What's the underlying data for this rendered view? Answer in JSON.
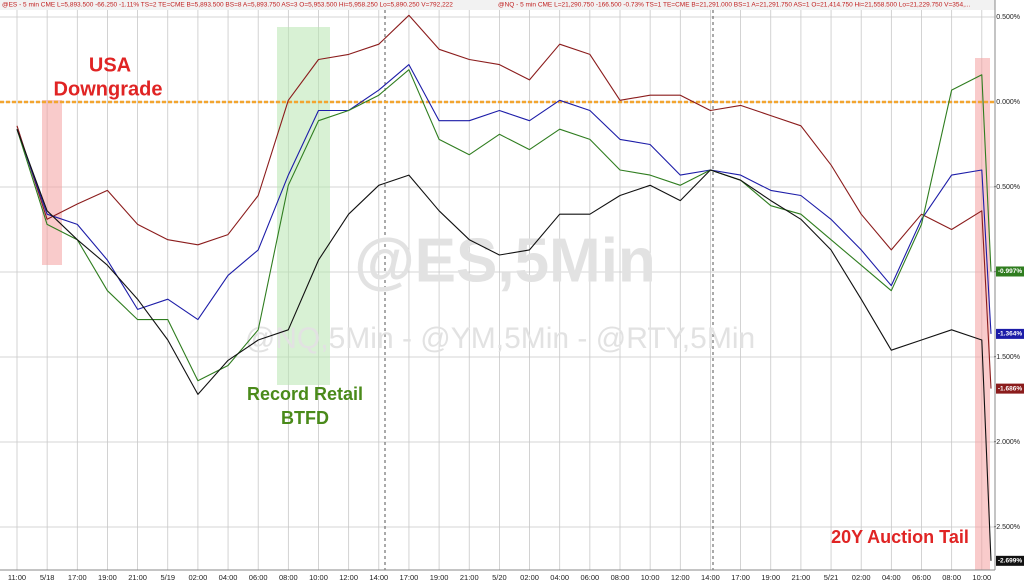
{
  "chart_data": {
    "type": "line",
    "header": [
      "@ES - 5 min CME  L=5,893.500 -66.250 -1.11% TS=2 TE=CME B=5,893.500 BS=8 A=5,893.750 AS=3 O=5,953.500 Hi=5,958.250 Lo=5,890.250 V=792,222",
      "@NQ - 5 min CME  L=21,290.750 -166.500 -0.73% TS=1 TE=CME B=21,291.000 BS=1 A=21,291.750 AS=1 O=21,414.750 Hi=21,558.500 Lo=21,229.750 V=354,..."
    ],
    "watermark": "@ES,5Min",
    "subwatermark": "@NQ,5Min - @YM,5Min - @RTY,5Min",
    "annotations": [
      [
        "USA",
        "Downgrade"
      ],
      [
        "Record Retail",
        "BTFD"
      ],
      [
        "20Y Auction Tail"
      ]
    ],
    "categories": [
      "11:00",
      "5/18",
      "17:00",
      "19:00",
      "21:00",
      "5/19",
      "02:00",
      "04:00",
      "06:00",
      "08:00",
      "10:00",
      "12:00",
      "14:00",
      "17:00",
      "19:00",
      "21:00",
      "5/20",
      "02:00",
      "04:00",
      "06:00",
      "08:00",
      "10:00",
      "12:00",
      "14:00",
      "17:00",
      "19:00",
      "21:00",
      "5/21",
      "02:00",
      "04:00",
      "06:00",
      "08:00",
      "10:00",
      null
    ],
    "series": [
      {
        "color": "#8b1c1c",
        "values": [
          -0.14,
          -0.69,
          -0.6,
          -0.52,
          -0.72,
          -0.81,
          -0.84,
          -0.78,
          -0.55,
          0.01,
          0.25,
          0.28,
          0.34,
          0.51,
          0.31,
          0.25,
          0.22,
          0.13,
          0.34,
          0.28,
          0.01,
          0.04,
          0.04,
          -0.05,
          -0.02,
          -0.08,
          -0.14,
          -0.37,
          -0.66,
          -0.87,
          -0.66,
          -0.75,
          -0.64,
          -1.686
        ],
        "value_labels": [
          null,
          null,
          null,
          null,
          null,
          null,
          null,
          null,
          null,
          null,
          null,
          null,
          null,
          null,
          null,
          null,
          null,
          null,
          null,
          null,
          null,
          null,
          null,
          null,
          null,
          null,
          null,
          null,
          null,
          null,
          null,
          null,
          null,
          "-1.686%"
        ]
      },
      {
        "color": "#1c1ca8",
        "values": [
          -0.16,
          -0.66,
          -0.72,
          -0.93,
          -1.22,
          -1.16,
          -1.28,
          -1.02,
          -0.87,
          -0.43,
          -0.05,
          -0.05,
          0.07,
          0.22,
          -0.11,
          -0.11,
          -0.05,
          -0.11,
          0.01,
          -0.05,
          -0.22,
          -0.25,
          -0.43,
          -0.4,
          -0.43,
          -0.52,
          -0.55,
          -0.69,
          -0.87,
          -1.08,
          -0.69,
          -0.43,
          -0.4,
          -1.364
        ],
        "value_labels": [
          null,
          null,
          null,
          null,
          null,
          null,
          null,
          null,
          null,
          null,
          null,
          null,
          null,
          null,
          null,
          null,
          null,
          null,
          null,
          null,
          null,
          null,
          null,
          null,
          null,
          null,
          null,
          null,
          null,
          null,
          null,
          null,
          null,
          "-1.364%"
        ]
      },
      {
        "color": "#2f7d1f",
        "values": [
          -0.16,
          -0.72,
          -0.81,
          -1.11,
          -1.28,
          -1.28,
          -1.64,
          -1.55,
          -1.34,
          -0.49,
          -0.11,
          -0.05,
          0.04,
          0.19,
          -0.22,
          -0.31,
          -0.19,
          -0.28,
          -0.16,
          -0.22,
          -0.4,
          -0.43,
          -0.49,
          -0.4,
          -0.46,
          -0.61,
          -0.66,
          -0.81,
          -0.96,
          -1.11,
          -0.72,
          0.07,
          0.16,
          -0.997
        ],
        "value_labels": [
          null,
          null,
          null,
          null,
          null,
          null,
          null,
          null,
          null,
          null,
          null,
          null,
          null,
          null,
          null,
          null,
          null,
          null,
          null,
          null,
          null,
          null,
          null,
          null,
          null,
          null,
          null,
          null,
          null,
          null,
          null,
          null,
          null,
          "-0.997%"
        ]
      },
      {
        "color": "#111111",
        "values": [
          -0.16,
          -0.64,
          -0.81,
          -0.96,
          -1.16,
          -1.4,
          -1.72,
          -1.52,
          -1.4,
          -1.34,
          -0.93,
          -0.66,
          -0.49,
          -0.43,
          -0.64,
          -0.81,
          -0.9,
          -0.87,
          -0.66,
          -0.66,
          -0.55,
          -0.49,
          -0.58,
          -0.4,
          -0.46,
          -0.58,
          -0.69,
          -0.87,
          -1.16,
          -1.46,
          -1.4,
          -1.34,
          -1.4,
          -2.699
        ],
        "value_labels": [
          null,
          null,
          null,
          null,
          null,
          null,
          null,
          null,
          null,
          null,
          null,
          null,
          null,
          null,
          null,
          null,
          null,
          null,
          null,
          null,
          null,
          null,
          null,
          null,
          null,
          null,
          null,
          null,
          null,
          null,
          null,
          null,
          null,
          "-2.699%"
        ]
      }
    ],
    "ylim": [
      -2.75,
      0.6
    ],
    "yticks": [
      {
        "value": 0.5,
        "label": "0.500%"
      },
      {
        "value": 0,
        "label": "0.000%"
      },
      {
        "value": -0.5,
        "label": "-0.500%"
      },
      {
        "value": -1,
        "label": "-1.000%"
      },
      {
        "value": -1.5,
        "label": "-1.500%"
      },
      {
        "value": -2,
        "label": "-2.000%"
      },
      {
        "value": -2.5,
        "label": "-2.500%"
      }
    ],
    "grid": true,
    "hline": 0,
    "hline_color": "#f2a530"
  }
}
